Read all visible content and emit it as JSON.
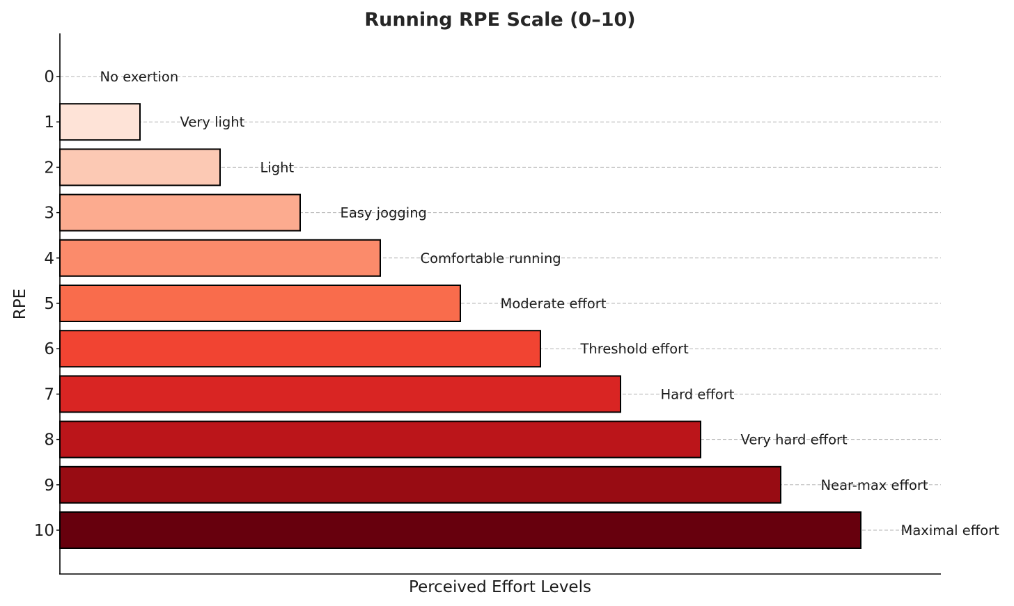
{
  "chart_data": {
    "type": "bar",
    "orientation": "horizontal",
    "title": "Running RPE Scale (0–10)",
    "xlabel": "Perceived Effort Levels",
    "ylabel": "RPE",
    "categories": [
      "0",
      "1",
      "2",
      "3",
      "4",
      "5",
      "6",
      "7",
      "8",
      "9",
      "10"
    ],
    "values": [
      0,
      1,
      2,
      3,
      4,
      5,
      6,
      7,
      8,
      9,
      10
    ],
    "annotations": [
      "No exertion",
      "Very light",
      "Light",
      "Easy jogging",
      "Comfortable running",
      "Moderate effort",
      "Threshold effort",
      "Hard effort",
      "Very hard effort",
      "Near-max effort",
      "Maximal effort"
    ],
    "colors": [
      "#fff5f0",
      "#fee3d7",
      "#fcc9b4",
      "#fcab8f",
      "#fb8b6b",
      "#f96c4c",
      "#f14432",
      "#d92523",
      "#bb151a",
      "#980c13",
      "#67000d"
    ],
    "xlim": [
      0,
      11
    ],
    "y_inverted": true,
    "grid": "horizontal-dashed",
    "x_ticks_visible": false
  }
}
